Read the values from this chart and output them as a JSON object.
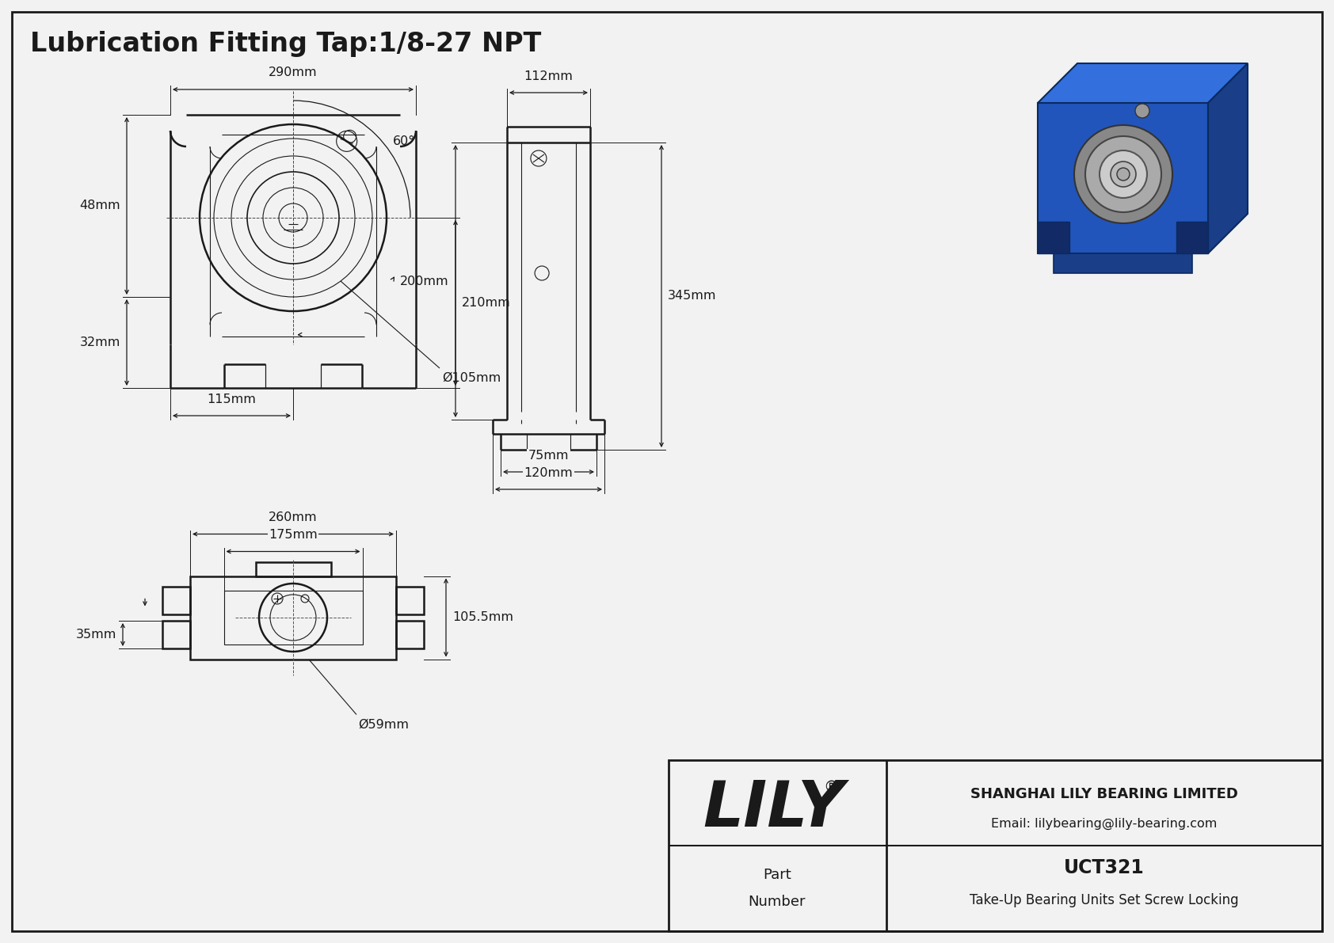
{
  "bg_color": "#f2f2f2",
  "line_color": "#1a1a1a",
  "title": "Lubrication Fitting Tap:1/8-27 NPT",
  "title_fontsize": 24,
  "part_number": "UCT321",
  "part_desc": "Take-Up Bearing Units Set Screw Locking",
  "company": "SHANGHAI LILY BEARING LIMITED",
  "email": "Email: lilybearing@lily-bearing.com",
  "lily_text": "LILY",
  "lily_registered": "®",
  "dim_290": "290mm",
  "dim_60": "60°",
  "dim_48": "48mm",
  "dim_32": "32mm",
  "dim_115": "115mm",
  "dim_105": "Ø105mm",
  "dim_210": "210mm",
  "dim_112": "112mm",
  "dim_200": "200mm",
  "dim_345": "345mm",
  "dim_75": "75mm",
  "dim_120": "120mm",
  "dim_260": "260mm",
  "dim_175": "175mm",
  "dim_105_5": "105.5mm",
  "dim_35": "35mm",
  "dim_59": "Ø59mm"
}
